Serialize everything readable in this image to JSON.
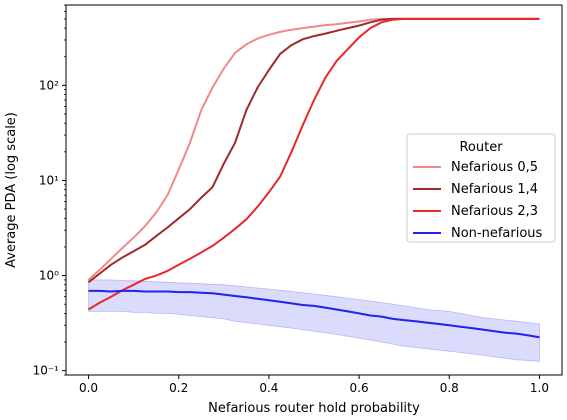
{
  "chart_data": {
    "type": "line",
    "title": "",
    "xlabel": "Nefarious router hold probability",
    "ylabel": "Average PDA (log scale)",
    "xlim": [
      -0.05,
      1.05
    ],
    "ylim": [
      0.09,
      700
    ],
    "yscale": "log",
    "grid": false,
    "x_ticks": [
      0.0,
      0.2,
      0.4,
      0.6,
      0.8,
      1.0
    ],
    "x_tick_labels": [
      "0.0",
      "0.2",
      "0.4",
      "0.6",
      "0.8",
      "1.0"
    ],
    "y_ticks": [
      0.1,
      1,
      10,
      100
    ],
    "y_tick_labels": [
      "10⁻¹",
      "10⁰",
      "10¹",
      "10²"
    ],
    "legend": {
      "title": "Router",
      "placement": "center-right"
    },
    "x": [
      0.0,
      0.025,
      0.05,
      0.075,
      0.1,
      0.125,
      0.15,
      0.175,
      0.2,
      0.225,
      0.25,
      0.275,
      0.3,
      0.325,
      0.35,
      0.375,
      0.4,
      0.425,
      0.45,
      0.475,
      0.5,
      0.525,
      0.55,
      0.575,
      0.6,
      0.625,
      0.65,
      0.675,
      0.7,
      0.725,
      0.75,
      0.775,
      0.8,
      0.825,
      0.85,
      0.875,
      0.9,
      0.925,
      0.95,
      0.975,
      1.0
    ],
    "series": [
      {
        "name": "Nefarious 0,5",
        "color": "#f08a8a",
        "values": [
          0.9,
          1.15,
          1.5,
          1.95,
          2.5,
          3.3,
          4.6,
          7.0,
          13,
          25,
          55,
          95,
          150,
          220,
          270,
          310,
          340,
          365,
          385,
          400,
          415,
          430,
          440,
          455,
          470,
          490,
          500,
          500,
          500,
          500,
          500,
          500,
          500,
          500,
          500,
          500,
          500,
          500,
          500,
          500,
          500
        ]
      },
      {
        "name": "Nefarious 1,4",
        "color": "#9e2a2a",
        "values": [
          0.85,
          1.05,
          1.3,
          1.55,
          1.8,
          2.1,
          2.6,
          3.2,
          4.0,
          5.0,
          6.6,
          8.5,
          15,
          25,
          55,
          95,
          145,
          215,
          265,
          305,
          330,
          350,
          375,
          400,
          425,
          460,
          490,
          500,
          500,
          500,
          500,
          500,
          500,
          500,
          500,
          500,
          500,
          500,
          500,
          500,
          500
        ]
      },
      {
        "name": "Nefarious 2,3",
        "color": "#e8282c",
        "values": [
          0.44,
          0.52,
          0.6,
          0.7,
          0.8,
          0.92,
          1.0,
          1.12,
          1.3,
          1.5,
          1.75,
          2.05,
          2.5,
          3.1,
          3.9,
          5.3,
          7.5,
          11,
          20,
          38,
          70,
          120,
          180,
          240,
          320,
          400,
          460,
          490,
          500,
          500,
          500,
          500,
          500,
          500,
          500,
          500,
          500,
          500,
          500,
          500,
          500
        ]
      },
      {
        "name": "Non-nefarious",
        "color": "#2222ee",
        "band_lower": [
          0.42,
          0.42,
          0.42,
          0.42,
          0.41,
          0.41,
          0.4,
          0.4,
          0.39,
          0.38,
          0.37,
          0.36,
          0.35,
          0.33,
          0.32,
          0.31,
          0.3,
          0.29,
          0.28,
          0.27,
          0.26,
          0.25,
          0.24,
          0.23,
          0.22,
          0.21,
          0.2,
          0.19,
          0.18,
          0.175,
          0.17,
          0.165,
          0.16,
          0.155,
          0.15,
          0.145,
          0.14,
          0.135,
          0.13,
          0.128,
          0.125
        ],
        "band_upper": [
          0.9,
          0.9,
          0.9,
          0.89,
          0.88,
          0.87,
          0.86,
          0.85,
          0.84,
          0.83,
          0.82,
          0.81,
          0.8,
          0.78,
          0.76,
          0.74,
          0.72,
          0.7,
          0.68,
          0.66,
          0.64,
          0.62,
          0.6,
          0.58,
          0.56,
          0.54,
          0.52,
          0.5,
          0.48,
          0.46,
          0.44,
          0.43,
          0.42,
          0.4,
          0.38,
          0.36,
          0.35,
          0.34,
          0.33,
          0.32,
          0.31
        ],
        "values": [
          0.69,
          0.69,
          0.68,
          0.69,
          0.69,
          0.68,
          0.68,
          0.68,
          0.67,
          0.67,
          0.66,
          0.65,
          0.63,
          0.61,
          0.59,
          0.57,
          0.55,
          0.53,
          0.51,
          0.49,
          0.48,
          0.46,
          0.44,
          0.42,
          0.4,
          0.38,
          0.37,
          0.35,
          0.34,
          0.33,
          0.32,
          0.31,
          0.3,
          0.29,
          0.28,
          0.27,
          0.26,
          0.25,
          0.245,
          0.235,
          0.225
        ]
      }
    ]
  }
}
